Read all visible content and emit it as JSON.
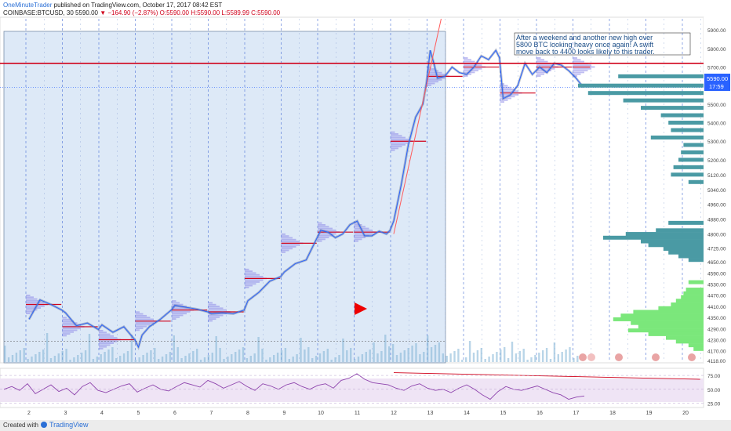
{
  "header": {
    "author": "OneMinuteTrader",
    "published": "published on TradingView.com, October 17, 2017 08:42 EST",
    "symbol": "COINBASE:BTCUSD, 30",
    "last": "5590.00",
    "change_arrow": "▼",
    "change": "−164.90 (−2.87%)",
    "ohlc": "O:5590.00 H:5590.00 L:5589.99 C:5590.00"
  },
  "annotation": {
    "lines": [
      "After a weekend and another new high over",
      "5800 BTC looking heavy once again!  A swift",
      "move back to 4400 looks likely to this trader."
    ]
  },
  "price_badge": {
    "price": "5590.00",
    "timer": "17:59"
  },
  "footer": {
    "created": "Created with",
    "brand": "TradingView"
  },
  "colors": {
    "background": "#ffffff",
    "history_shade": "#dde9f7",
    "price_line": "#2962ff",
    "resistance": "#d0021b",
    "profile_upper": "#4a9aa4",
    "profile_lower": "#7be77b",
    "session_profile": "#8a86e8",
    "rsi": "#8e44ad"
  },
  "chart_data": [
    {
      "type": "line",
      "name": "price",
      "x_ticks": [
        "2",
        "3",
        "4",
        "5",
        "6",
        "7",
        "8",
        "9",
        "10",
        "11",
        "12",
        "13",
        "14",
        "15",
        "16",
        "17",
        "18",
        "19",
        "20"
      ],
      "x": [
        2.0,
        2.3,
        2.6,
        2.9,
        3.0,
        3.3,
        3.6,
        3.9,
        4.0,
        4.3,
        4.6,
        4.9,
        5.0,
        5.1,
        5.3,
        5.6,
        5.9,
        6.0,
        6.3,
        6.6,
        6.9,
        7.0,
        7.3,
        7.6,
        7.9,
        8.0,
        8.3,
        8.6,
        8.9,
        9.0,
        9.3,
        9.6,
        9.9,
        10.0,
        10.2,
        10.4,
        10.6,
        10.8,
        11.0,
        11.2,
        11.4,
        11.6,
        11.8,
        11.9,
        12.0,
        12.2,
        12.4,
        12.6,
        12.8,
        12.9,
        13.0,
        13.1,
        13.2,
        13.4,
        13.6,
        13.8,
        14.0,
        14.2,
        14.4,
        14.6,
        14.8,
        14.9,
        15.0,
        15.2,
        15.4,
        15.6,
        15.8,
        16.0,
        16.2,
        16.4,
        16.6,
        16.8,
        17.0,
        17.2
      ],
      "y": [
        4340,
        4445,
        4420,
        4390,
        4375,
        4305,
        4320,
        4285,
        4310,
        4270,
        4300,
        4230,
        4190,
        4255,
        4300,
        4340,
        4390,
        4415,
        4405,
        4395,
        4380,
        4370,
        4375,
        4370,
        4390,
        4440,
        4485,
        4545,
        4570,
        4595,
        4640,
        4660,
        4780,
        4820,
        4810,
        4780,
        4800,
        4850,
        4870,
        4790,
        4790,
        4815,
        4800,
        4820,
        4870,
        5060,
        5280,
        5430,
        5500,
        5620,
        5790,
        5720,
        5640,
        5650,
        5700,
        5670,
        5660,
        5700,
        5760,
        5740,
        5790,
        5750,
        5530,
        5550,
        5600,
        5720,
        5660,
        5700,
        5670,
        5720,
        5710,
        5680,
        5640,
        5590
      ],
      "ylim": [
        4118,
        5960
      ],
      "y_ticks": [
        4118,
        4170,
        4230,
        4290,
        4350,
        4410,
        4470,
        4530,
        4590,
        4650,
        4725,
        4800,
        4880,
        4960,
        5040,
        5120,
        5200,
        5300,
        5400,
        5500,
        5600,
        5700,
        5800,
        5900
      ],
      "current_price": 5590.0,
      "resistance_level": 5720,
      "trendline": [
        [
          12.0,
          4800
        ],
        [
          13.3,
          5960
        ]
      ],
      "session_pocs": [
        [
          2.0,
          2.8,
          4420
        ],
        [
          3.0,
          3.8,
          4300
        ],
        [
          4.0,
          4.8,
          4230
        ],
        [
          5.0,
          5.8,
          4330
        ],
        [
          6.0,
          6.8,
          4390
        ],
        [
          7.0,
          7.8,
          4380
        ],
        [
          8.0,
          8.8,
          4560
        ],
        [
          9.0,
          9.8,
          4750
        ],
        [
          10.0,
          10.8,
          4810
        ],
        [
          11.0,
          11.8,
          4810
        ],
        [
          12.0,
          12.8,
          5300
        ],
        [
          13.0,
          13.8,
          5650
        ],
        [
          14.0,
          14.8,
          5700
        ],
        [
          15.0,
          15.8,
          5560
        ],
        [
          16.0,
          16.8,
          5700
        ],
        [
          17.0,
          17.3,
          5700
        ]
      ]
    },
    {
      "type": "bar",
      "name": "volume-profile",
      "y": [
        5650,
        5600,
        5560,
        5520,
        5480,
        5440,
        5400,
        5360,
        5320,
        5280,
        5240,
        5200,
        5160,
        5120,
        5080,
        4860,
        4820,
        4800,
        4780,
        4760,
        4740,
        4720,
        4700,
        4680,
        4660,
        4540,
        4500,
        4480,
        4460,
        4440,
        4420,
        4400,
        4380,
        4360,
        4340,
        4320,
        4300,
        4280,
        4260,
        4240,
        4220,
        4200,
        4180
      ],
      "values": [
        68,
        100,
        92,
        64,
        50,
        34,
        28,
        26,
        42,
        16,
        18,
        20,
        24,
        26,
        12,
        28,
        38,
        62,
        80,
        50,
        44,
        32,
        28,
        20,
        12,
        12,
        14,
        16,
        18,
        22,
        26,
        36,
        56,
        66,
        72,
        58,
        52,
        60,
        44,
        30,
        22,
        12,
        8
      ],
      "lower_boundary": 4550
    },
    {
      "type": "line",
      "name": "rsi",
      "ylim": [
        20,
        85
      ],
      "y_ticks": [
        25.0,
        50.0,
        75.0
      ],
      "values": [
        50,
        55,
        48,
        60,
        42,
        50,
        58,
        46,
        52,
        40,
        55,
        62,
        48,
        44,
        50,
        56,
        60,
        45,
        52,
        58,
        50,
        47,
        55,
        62,
        58,
        54,
        66,
        60,
        52,
        58,
        64,
        55,
        48,
        60,
        56,
        50,
        58,
        62,
        55,
        50,
        57,
        60,
        52,
        66,
        70,
        78,
        68,
        62,
        60,
        58,
        52,
        48,
        56,
        60,
        52,
        48,
        50,
        44,
        52,
        58,
        50,
        40,
        32,
        46,
        55,
        50,
        48,
        52,
        56,
        50,
        44,
        40,
        32,
        36,
        38
      ],
      "trendline": [
        [
          12.0,
          80
        ],
        [
          20.4,
          68
        ]
      ]
    }
  ]
}
